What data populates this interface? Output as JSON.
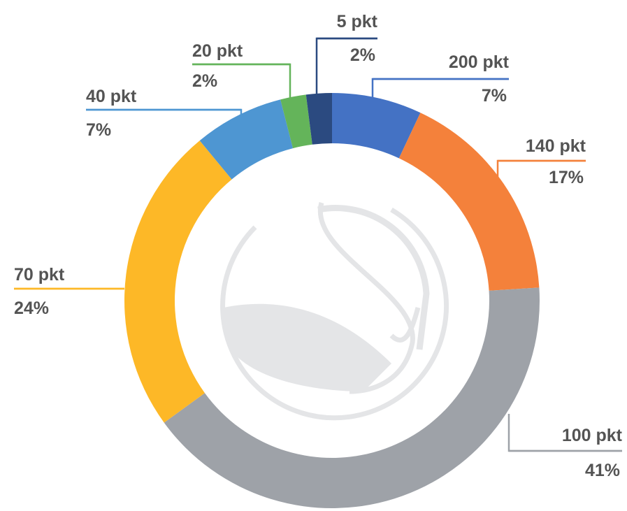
{
  "chart_data": {
    "type": "donut",
    "categories": [
      "200 pkt",
      "140 pkt",
      "100 pkt",
      "70 pkt",
      "40 pkt",
      "20 pkt",
      "5 pkt"
    ],
    "values": [
      7,
      17,
      41,
      24,
      7,
      2,
      2
    ],
    "value_labels": [
      "7%",
      "17%",
      "41%",
      "24%",
      "7%",
      "2%",
      "2%"
    ],
    "colors": [
      "#4472c4",
      "#f4813b",
      "#9ea2a8",
      "#fdb827",
      "#4e96d2",
      "#64b45a",
      "#2b4a80"
    ]
  }
}
